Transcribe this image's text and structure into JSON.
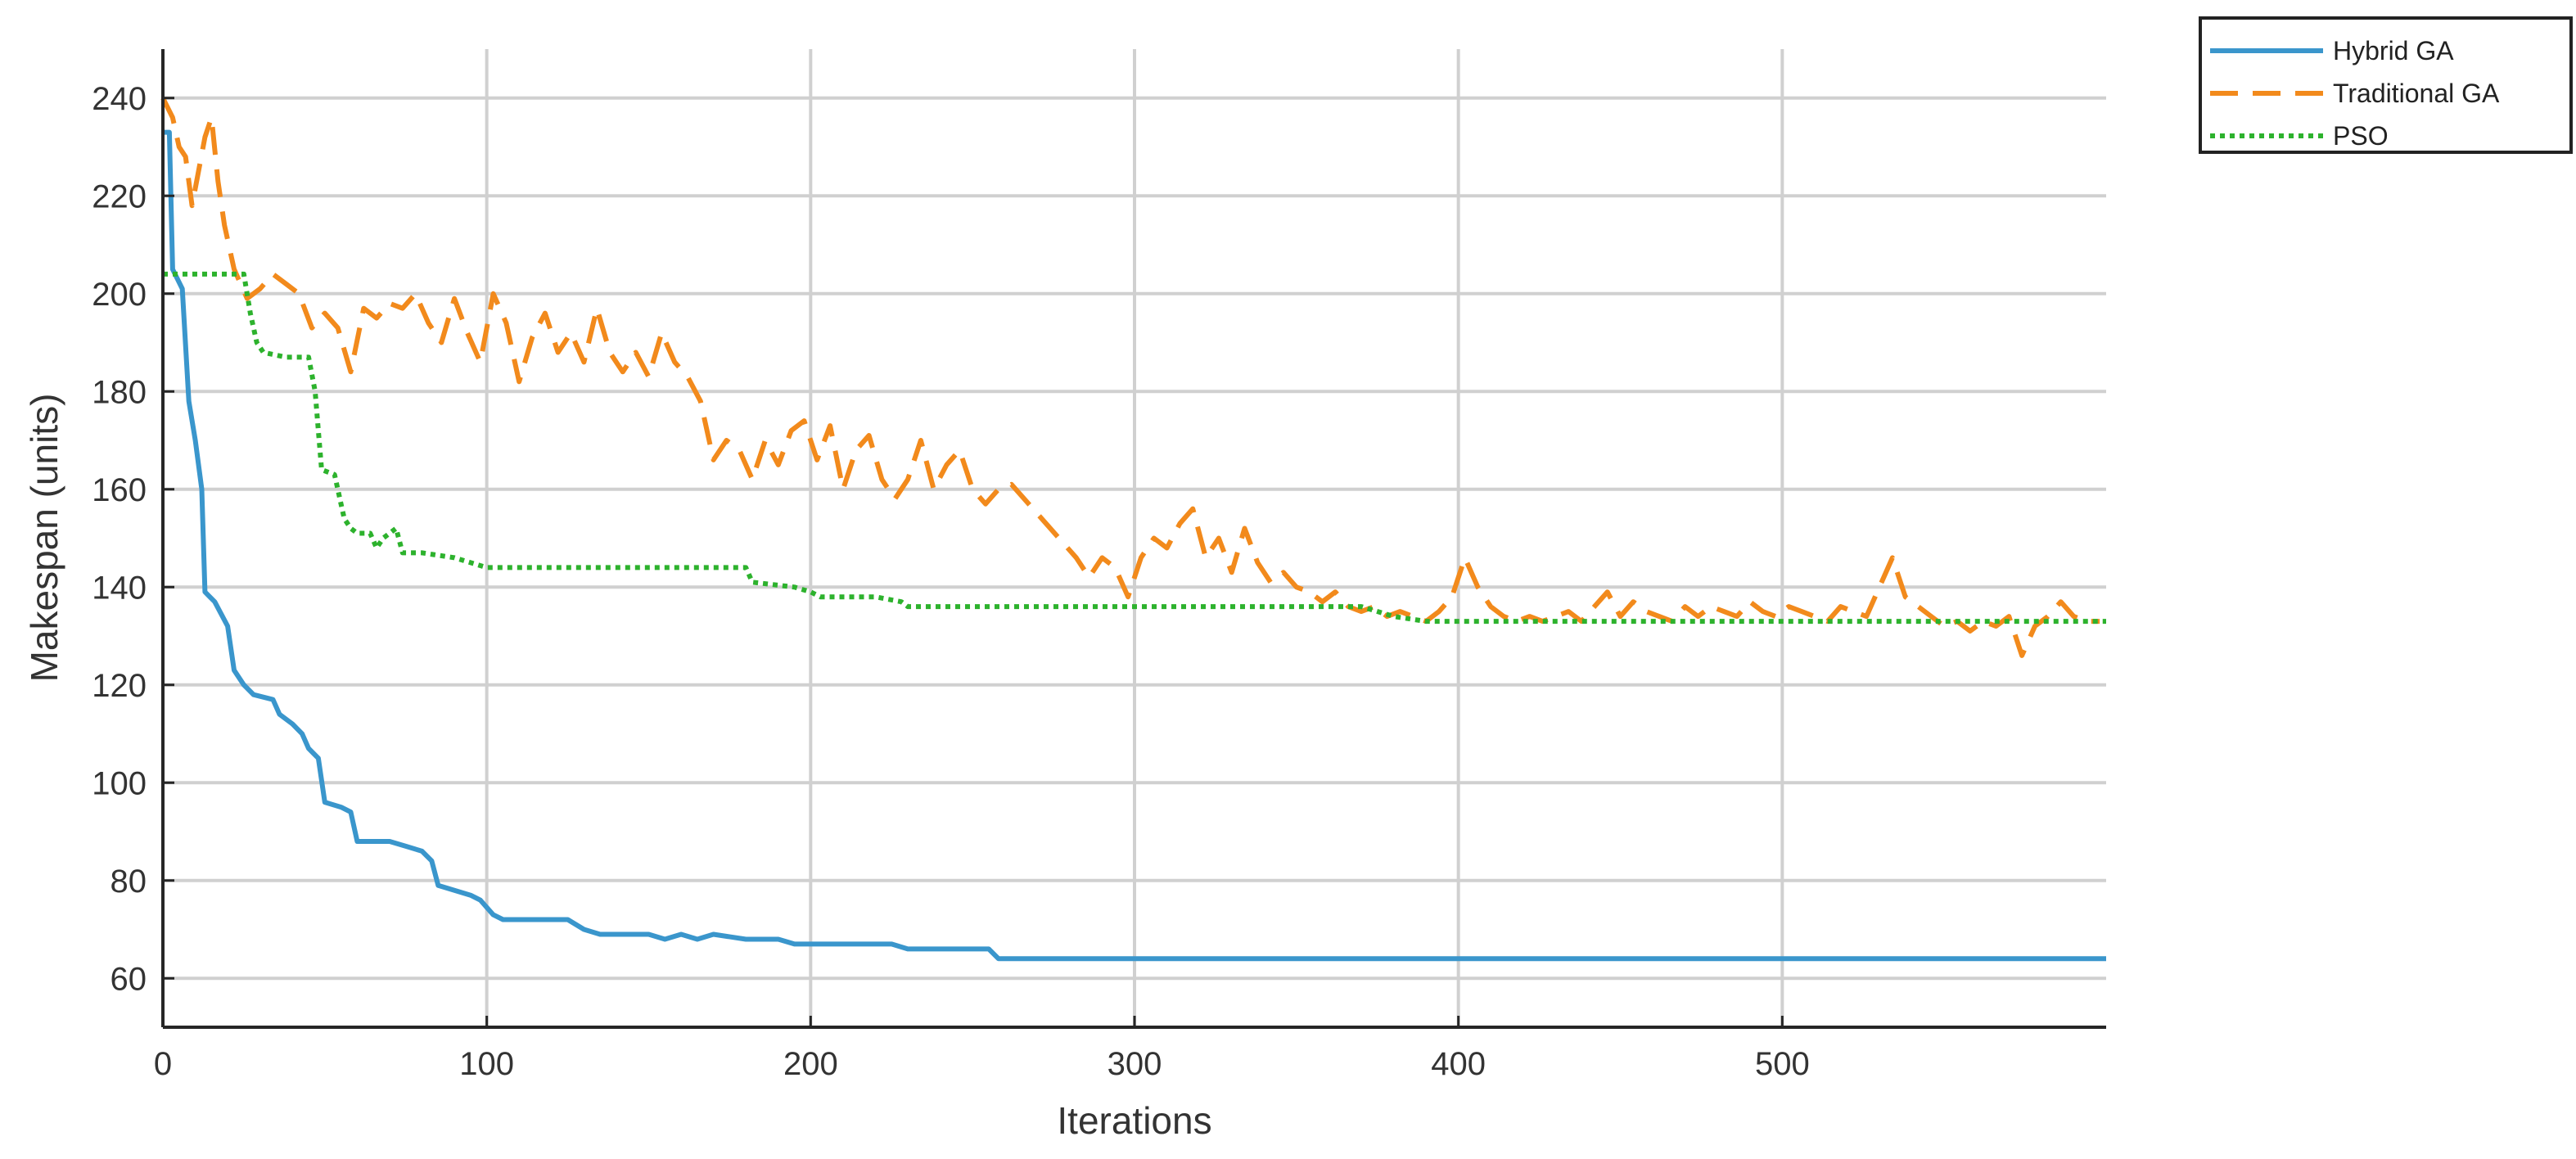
{
  "chart_data": {
    "type": "line",
    "title": "",
    "xlabel": "Iterations",
    "ylabel": "Makespan (units)",
    "xlim": [
      0,
      600
    ],
    "ylim": [
      50,
      250
    ],
    "xticks": [
      0,
      100,
      200,
      300,
      400,
      500
    ],
    "yticks": [
      60,
      80,
      100,
      120,
      140,
      160,
      180,
      200,
      220,
      240
    ],
    "grid": true,
    "legend_position": "outside-top-right",
    "series": [
      {
        "name": "Hybrid GA",
        "color": "#3a96cc",
        "style": "solid",
        "points": [
          [
            0,
            233
          ],
          [
            2,
            233
          ],
          [
            3,
            205
          ],
          [
            6,
            201
          ],
          [
            8,
            178
          ],
          [
            10,
            170
          ],
          [
            12,
            160
          ],
          [
            13,
            139
          ],
          [
            16,
            137
          ],
          [
            20,
            132
          ],
          [
            22,
            123
          ],
          [
            25,
            120
          ],
          [
            28,
            118
          ],
          [
            34,
            117
          ],
          [
            36,
            114
          ],
          [
            40,
            112
          ],
          [
            43,
            110
          ],
          [
            45,
            107
          ],
          [
            48,
            105
          ],
          [
            50,
            96
          ],
          [
            55,
            95
          ],
          [
            58,
            94
          ],
          [
            60,
            88
          ],
          [
            70,
            88
          ],
          [
            75,
            87
          ],
          [
            80,
            86
          ],
          [
            83,
            84
          ],
          [
            85,
            79
          ],
          [
            95,
            77
          ],
          [
            98,
            76
          ],
          [
            102,
            73
          ],
          [
            105,
            72
          ],
          [
            125,
            72
          ],
          [
            130,
            70
          ],
          [
            135,
            69
          ],
          [
            150,
            69
          ],
          [
            155,
            68
          ],
          [
            160,
            69
          ],
          [
            165,
            68
          ],
          [
            170,
            69
          ],
          [
            180,
            68
          ],
          [
            190,
            68
          ],
          [
            195,
            67
          ],
          [
            225,
            67
          ],
          [
            230,
            66
          ],
          [
            255,
            66
          ],
          [
            258,
            64
          ],
          [
            600,
            64
          ]
        ]
      },
      {
        "name": "Traditional GA",
        "color": "#f28a1c",
        "style": "dashed",
        "points": [
          [
            0,
            240
          ],
          [
            3,
            236
          ],
          [
            5,
            230
          ],
          [
            7,
            228
          ],
          [
            9,
            218
          ],
          [
            11,
            225
          ],
          [
            13,
            232
          ],
          [
            15,
            236
          ],
          [
            17,
            223
          ],
          [
            19,
            214
          ],
          [
            22,
            205
          ],
          [
            26,
            199
          ],
          [
            30,
            201
          ],
          [
            34,
            204
          ],
          [
            38,
            202
          ],
          [
            42,
            200
          ],
          [
            46,
            193
          ],
          [
            50,
            196
          ],
          [
            54,
            193
          ],
          [
            58,
            184
          ],
          [
            62,
            197
          ],
          [
            66,
            195
          ],
          [
            70,
            198
          ],
          [
            74,
            197
          ],
          [
            78,
            200
          ],
          [
            82,
            194
          ],
          [
            86,
            190
          ],
          [
            90,
            199
          ],
          [
            94,
            192
          ],
          [
            98,
            186
          ],
          [
            102,
            200
          ],
          [
            106,
            194
          ],
          [
            110,
            182
          ],
          [
            114,
            191
          ],
          [
            118,
            196
          ],
          [
            122,
            188
          ],
          [
            126,
            192
          ],
          [
            130,
            186
          ],
          [
            134,
            197
          ],
          [
            138,
            188
          ],
          [
            142,
            184
          ],
          [
            146,
            188
          ],
          [
            150,
            183
          ],
          [
            154,
            192
          ],
          [
            158,
            186
          ],
          [
            162,
            183
          ],
          [
            166,
            178
          ],
          [
            170,
            166
          ],
          [
            174,
            170
          ],
          [
            178,
            168
          ],
          [
            182,
            162
          ],
          [
            186,
            170
          ],
          [
            190,
            165
          ],
          [
            194,
            172
          ],
          [
            198,
            174
          ],
          [
            202,
            166
          ],
          [
            206,
            173
          ],
          [
            210,
            160
          ],
          [
            214,
            168
          ],
          [
            218,
            171
          ],
          [
            222,
            162
          ],
          [
            226,
            158
          ],
          [
            230,
            162
          ],
          [
            234,
            170
          ],
          [
            238,
            160
          ],
          [
            242,
            165
          ],
          [
            246,
            168
          ],
          [
            250,
            160
          ],
          [
            254,
            157
          ],
          [
            258,
            160
          ],
          [
            262,
            161
          ],
          [
            266,
            158
          ],
          [
            270,
            155
          ],
          [
            274,
            152
          ],
          [
            278,
            149
          ],
          [
            282,
            146
          ],
          [
            286,
            142
          ],
          [
            290,
            146
          ],
          [
            294,
            144
          ],
          [
            298,
            138
          ],
          [
            302,
            146
          ],
          [
            306,
            150
          ],
          [
            310,
            148
          ],
          [
            314,
            153
          ],
          [
            318,
            156
          ],
          [
            322,
            146
          ],
          [
            326,
            150
          ],
          [
            330,
            143
          ],
          [
            334,
            152
          ],
          [
            338,
            145
          ],
          [
            342,
            141
          ],
          [
            346,
            143
          ],
          [
            350,
            140
          ],
          [
            354,
            139
          ],
          [
            358,
            137
          ],
          [
            362,
            139
          ],
          [
            366,
            136
          ],
          [
            370,
            135
          ],
          [
            374,
            136
          ],
          [
            378,
            134
          ],
          [
            382,
            135
          ],
          [
            386,
            134
          ],
          [
            390,
            133
          ],
          [
            394,
            135
          ],
          [
            398,
            138
          ],
          [
            402,
            146
          ],
          [
            406,
            140
          ],
          [
            410,
            136
          ],
          [
            414,
            134
          ],
          [
            418,
            133
          ],
          [
            422,
            134
          ],
          [
            426,
            133
          ],
          [
            430,
            134
          ],
          [
            434,
            135
          ],
          [
            438,
            133
          ],
          [
            442,
            136
          ],
          [
            446,
            139
          ],
          [
            450,
            134
          ],
          [
            454,
            137
          ],
          [
            458,
            135
          ],
          [
            462,
            134
          ],
          [
            466,
            133
          ],
          [
            470,
            136
          ],
          [
            474,
            134
          ],
          [
            478,
            136
          ],
          [
            482,
            135
          ],
          [
            486,
            134
          ],
          [
            490,
            137
          ],
          [
            494,
            135
          ],
          [
            498,
            134
          ],
          [
            502,
            136
          ],
          [
            506,
            135
          ],
          [
            510,
            134
          ],
          [
            514,
            133
          ],
          [
            518,
            136
          ],
          [
            522,
            135
          ],
          [
            526,
            134
          ],
          [
            530,
            140
          ],
          [
            534,
            146
          ],
          [
            538,
            138
          ],
          [
            542,
            136
          ],
          [
            546,
            134
          ],
          [
            550,
            132
          ],
          [
            554,
            133
          ],
          [
            558,
            131
          ],
          [
            562,
            133
          ],
          [
            566,
            132
          ],
          [
            570,
            134
          ],
          [
            574,
            126
          ],
          [
            578,
            132
          ],
          [
            582,
            134
          ],
          [
            586,
            137
          ],
          [
            590,
            134
          ],
          [
            594,
            133
          ],
          [
            598,
            133
          ]
        ]
      },
      {
        "name": "PSO",
        "color": "#2db22d",
        "style": "dotted",
        "points": [
          [
            0,
            204
          ],
          [
            25,
            204
          ],
          [
            27,
            196
          ],
          [
            29,
            190
          ],
          [
            31,
            188
          ],
          [
            38,
            187
          ],
          [
            45,
            187
          ],
          [
            47,
            180
          ],
          [
            48,
            172
          ],
          [
            49,
            164
          ],
          [
            53,
            163
          ],
          [
            54,
            160
          ],
          [
            55,
            157
          ],
          [
            56,
            154
          ],
          [
            58,
            152
          ],
          [
            60,
            151
          ],
          [
            64,
            151
          ],
          [
            66,
            148
          ],
          [
            68,
            150
          ],
          [
            72,
            152
          ],
          [
            74,
            147
          ],
          [
            80,
            147
          ],
          [
            90,
            146
          ],
          [
            95,
            145
          ],
          [
            100,
            144
          ],
          [
            140,
            144
          ],
          [
            180,
            144
          ],
          [
            182,
            141
          ],
          [
            195,
            140
          ],
          [
            200,
            139
          ],
          [
            203,
            138
          ],
          [
            220,
            138
          ],
          [
            228,
            137
          ],
          [
            230,
            136
          ],
          [
            250,
            136
          ],
          [
            260,
            136
          ],
          [
            370,
            136
          ],
          [
            380,
            134
          ],
          [
            390,
            133
          ],
          [
            600,
            133
          ]
        ]
      }
    ]
  }
}
